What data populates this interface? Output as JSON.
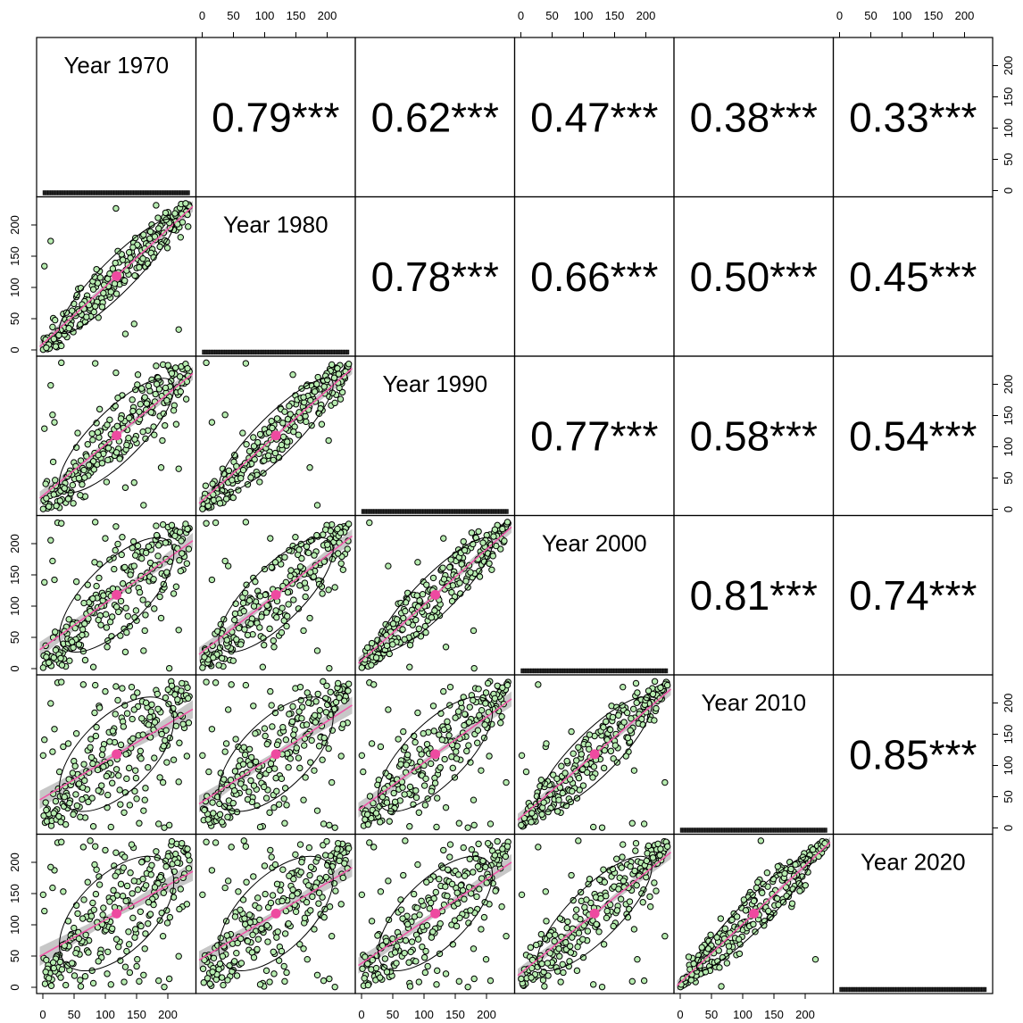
{
  "chart_data": {
    "type": "scatter",
    "subtype": "pairs-correlation-matrix",
    "variables": [
      "Year 1970",
      "Year 1980",
      "Year 1990",
      "Year 2000",
      "Year 2010",
      "Year 2020"
    ],
    "axis_range": [
      0,
      235
    ],
    "ticks": [
      0,
      50,
      100,
      150,
      200
    ],
    "tick_labels": [
      "0",
      "50",
      "100",
      "150",
      "200"
    ],
    "correlations": [
      {
        "row": 0,
        "col": 1,
        "label": "0.79***"
      },
      {
        "row": 0,
        "col": 2,
        "label": "0.62***"
      },
      {
        "row": 0,
        "col": 3,
        "label": "0.47***"
      },
      {
        "row": 0,
        "col": 4,
        "label": "0.38***"
      },
      {
        "row": 0,
        "col": 5,
        "label": "0.33***"
      },
      {
        "row": 1,
        "col": 2,
        "label": "0.78***"
      },
      {
        "row": 1,
        "col": 3,
        "label": "0.66***"
      },
      {
        "row": 1,
        "col": 4,
        "label": "0.50***"
      },
      {
        "row": 1,
        "col": 5,
        "label": "0.45***"
      },
      {
        "row": 2,
        "col": 3,
        "label": "0.77***"
      },
      {
        "row": 2,
        "col": 4,
        "label": "0.58***"
      },
      {
        "row": 2,
        "col": 5,
        "label": "0.54***"
      },
      {
        "row": 3,
        "col": 4,
        "label": "0.81***"
      },
      {
        "row": 3,
        "col": 5,
        "label": "0.74***"
      },
      {
        "row": 4,
        "col": 5,
        "label": "0.85***"
      }
    ],
    "mean_point": [
      118,
      118
    ],
    "n_points_per_panel": 234,
    "colors": {
      "point_fill": "#b7ecb0",
      "point_stroke": "#000000",
      "fit_line": "#ee5aa8",
      "confidence_band": "#bdbdbd",
      "mean_point": "#ee4aa0",
      "ellipse": "#000000",
      "histogram_bar": "#222222"
    }
  }
}
